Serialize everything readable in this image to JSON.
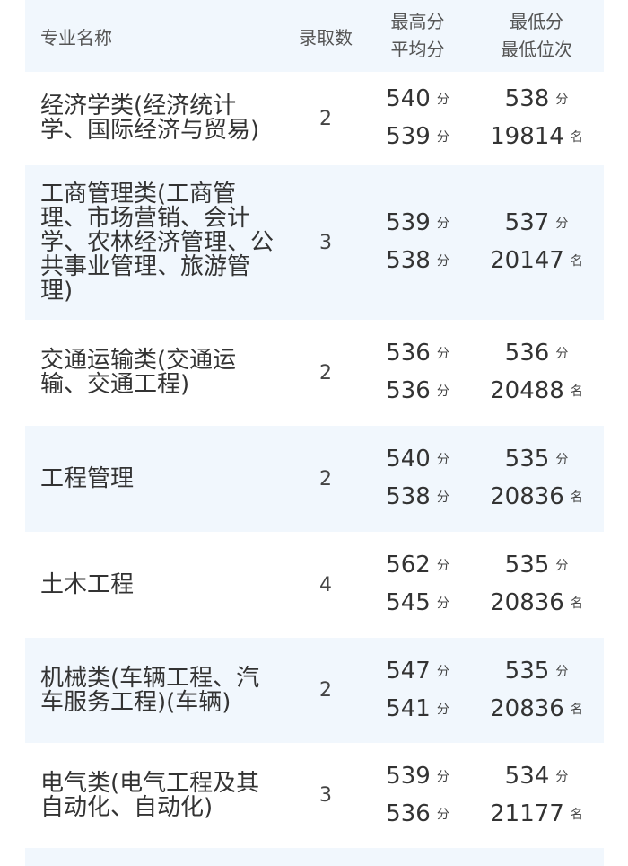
{
  "header": {
    "name": "专业名称",
    "count": "录取数",
    "max": "最高分",
    "avg": "平均分",
    "min": "最低分",
    "rank": "最低位次"
  },
  "units": {
    "score": "分",
    "rank": "名"
  },
  "rows": [
    {
      "name": "经济学类(经济统计学、国际经济与贸易)",
      "count": "2",
      "max": "540",
      "avg": "539",
      "min": "538",
      "rank": "19814"
    },
    {
      "name": "工商管理类(工商管理、市场营销、会计学、农林经济管理、公共事业管理、旅游管理)",
      "count": "3",
      "max": "539",
      "avg": "538",
      "min": "537",
      "rank": "20147"
    },
    {
      "name": "交通运输类(交通运输、交通工程)",
      "count": "2",
      "max": "536",
      "avg": "536",
      "min": "536",
      "rank": "20488"
    },
    {
      "name": "工程管理",
      "count": "2",
      "max": "540",
      "avg": "538",
      "min": "535",
      "rank": "20836"
    },
    {
      "name": "土木工程",
      "count": "4",
      "max": "562",
      "avg": "545",
      "min": "535",
      "rank": "20836"
    },
    {
      "name": "机械类(车辆工程、汽车服务工程)(车辆)",
      "count": "2",
      "max": "547",
      "avg": "541",
      "min": "535",
      "rank": "20836"
    },
    {
      "name": "电气类(电气工程及其自动化、自动化)",
      "count": "3",
      "max": "539",
      "avg": "536",
      "min": "534",
      "rank": "21177"
    }
  ]
}
